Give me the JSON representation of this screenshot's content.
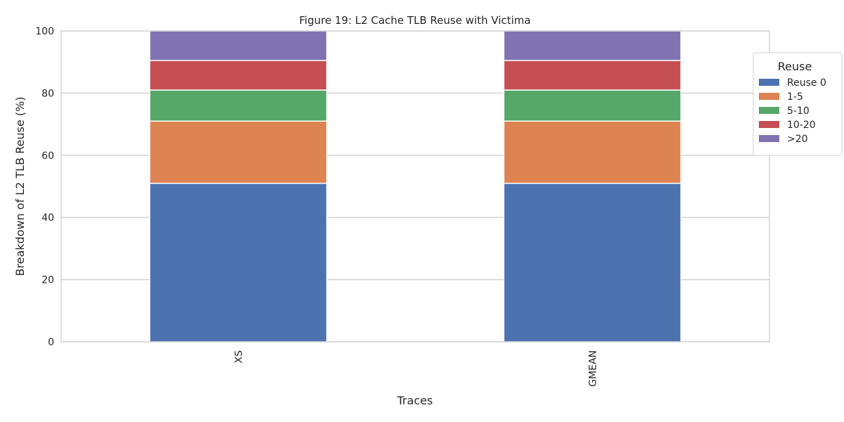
{
  "chart_data": {
    "type": "bar",
    "stacked": true,
    "title": "Figure 19: L2 Cache TLB Reuse with Victima",
    "xlabel": "Traces",
    "ylabel": "Breakdown of L2 TLB Reuse (%)",
    "categories": [
      "XS",
      "GMEAN"
    ],
    "ylim": [
      0,
      100
    ],
    "yticks": [
      0,
      20,
      40,
      60,
      80,
      100
    ],
    "grid": true,
    "legend": {
      "title": "Reuse",
      "placement": "top-right"
    },
    "series": [
      {
        "name": "Reuse 0",
        "color": "#4c72b0",
        "values": [
          51,
          51
        ]
      },
      {
        "name": "1-5",
        "color": "#dd8452",
        "values": [
          20,
          20
        ]
      },
      {
        "name": "5-10",
        "color": "#55a868",
        "values": [
          10,
          10
        ]
      },
      {
        "name": "10-20",
        "color": "#c44e52",
        "values": [
          9.5,
          9.5
        ]
      },
      {
        "name": ">20",
        "color": "#8172b3",
        "values": [
          9.5,
          9.5
        ]
      }
    ]
  }
}
